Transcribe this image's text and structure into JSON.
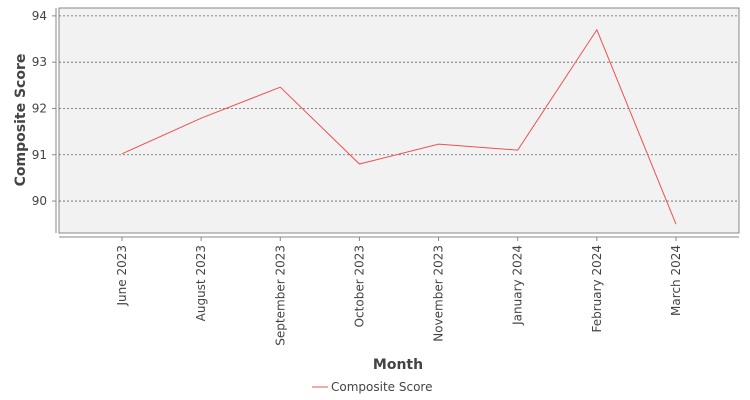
{
  "chart_data": {
    "type": "line",
    "x_label": "Month",
    "y_label": "Composite Score",
    "categories": [
      "June 2023",
      "August 2023",
      "September 2023",
      "October 2023",
      "November 2023",
      "January 2024",
      "February 2024",
      "March 2024"
    ],
    "series": [
      {
        "name": "Composite Score",
        "color": "#f05050",
        "values": [
          91.02,
          91.79,
          92.46,
          90.8,
          91.23,
          91.1,
          93.7,
          89.5
        ]
      }
    ],
    "ylim": [
      89.31,
      94.17
    ],
    "yticks": [
      90,
      91,
      92,
      93,
      94
    ],
    "grid": true,
    "legend": "bottom"
  }
}
